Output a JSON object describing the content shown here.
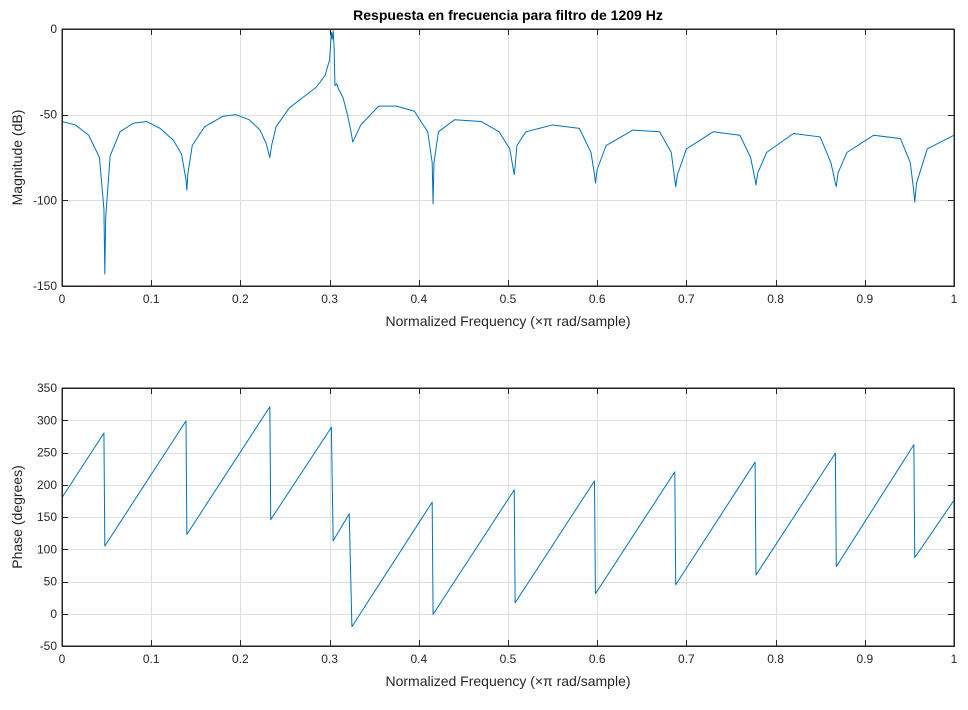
{
  "chart_data": [
    {
      "type": "line",
      "title": "Respuesta en frecuencia para filtro de 1209 Hz",
      "xlabel": "Normalized Frequency  (×π rad/sample)",
      "ylabel": "Magnitude (dB)",
      "xlim": [
        0,
        1
      ],
      "ylim": [
        -150,
        0
      ],
      "xticks": [
        0,
        0.1,
        0.2,
        0.3,
        0.4,
        0.5,
        0.6,
        0.7,
        0.8,
        0.9,
        1
      ],
      "xtick_labels": [
        "0",
        "0.1",
        "0.2",
        "0.3",
        "0.4",
        "0.5",
        "0.6",
        "0.7",
        "0.8",
        "0.9",
        "1"
      ],
      "yticks": [
        -150,
        -100,
        -50,
        0
      ],
      "ytick_labels": [
        "-150",
        "-100",
        "-50",
        "0"
      ],
      "grid": true,
      "color": "#0072bd",
      "series": [
        {
          "x": [
            0,
            0.015,
            0.03,
            0.042,
            0.047,
            0.048,
            0.049,
            0.054,
            0.065,
            0.08,
            0.095,
            0.11,
            0.125,
            0.134,
            0.139,
            0.14,
            0.141,
            0.146,
            0.16,
            0.18,
            0.195,
            0.21,
            0.222,
            0.229,
            0.233,
            0.235,
            0.24,
            0.255,
            0.27,
            0.285,
            0.295,
            0.3,
            0.302,
            0.303,
            0.304,
            0.305,
            0.306,
            0.308,
            0.31,
            0.315,
            0.32,
            0.324,
            0.326,
            0.335,
            0.355,
            0.375,
            0.395,
            0.41,
            0.415,
            0.416,
            0.417,
            0.422,
            0.44,
            0.47,
            0.49,
            0.502,
            0.507,
            0.508,
            0.51,
            0.52,
            0.55,
            0.58,
            0.593,
            0.597,
            0.598,
            0.6,
            0.61,
            0.64,
            0.67,
            0.683,
            0.687,
            0.688,
            0.69,
            0.7,
            0.73,
            0.76,
            0.772,
            0.777,
            0.778,
            0.78,
            0.79,
            0.82,
            0.85,
            0.862,
            0.867,
            0.868,
            0.87,
            0.88,
            0.91,
            0.94,
            0.951,
            0.955,
            0.956,
            0.958,
            0.97,
            1
          ],
          "y": [
            -54,
            -56,
            -62,
            -75,
            -105,
            -143,
            -110,
            -74,
            -60,
            -55,
            -54,
            -58,
            -65,
            -73,
            -88,
            -94,
            -85,
            -68,
            -57,
            -51,
            -50,
            -53,
            -59,
            -67,
            -75,
            -68,
            -57,
            -46,
            -40,
            -34,
            -27,
            -18,
            -2,
            -6,
            -1,
            -10,
            -33,
            -32,
            -35,
            -40,
            -50,
            -60,
            -66,
            -56,
            -45,
            -45,
            -48,
            -60,
            -78,
            -102,
            -78,
            -60,
            -53,
            -54,
            -60,
            -70,
            -85,
            -80,
            -68,
            -60,
            -56,
            -58,
            -72,
            -85,
            -90,
            -82,
            -68,
            -59,
            -60,
            -72,
            -88,
            -92,
            -85,
            -70,
            -60,
            -62,
            -75,
            -88,
            -91,
            -84,
            -72,
            -61,
            -63,
            -78,
            -90,
            -92,
            -84,
            -72,
            -62,
            -64,
            -78,
            -95,
            -101,
            -90,
            -70,
            -62
          ]
        }
      ]
    },
    {
      "type": "line",
      "title": "",
      "xlabel": "Normalized Frequency  (×π rad/sample)",
      "ylabel": "Phase (degrees)",
      "xlim": [
        0,
        1
      ],
      "ylim": [
        -50,
        350
      ],
      "xticks": [
        0,
        0.1,
        0.2,
        0.3,
        0.4,
        0.5,
        0.6,
        0.7,
        0.8,
        0.9,
        1
      ],
      "xtick_labels": [
        "0",
        "0.1",
        "0.2",
        "0.3",
        "0.4",
        "0.5",
        "0.6",
        "0.7",
        "0.8",
        "0.9",
        "1"
      ],
      "yticks": [
        -50,
        0,
        50,
        100,
        150,
        200,
        250,
        300,
        350
      ],
      "ytick_labels": [
        "-50",
        "0",
        "50",
        "100",
        "150",
        "200",
        "250",
        "300",
        "350"
      ],
      "grid": true,
      "color": "#0072bd",
      "series": [
        {
          "x": [
            0,
            0.047,
            0.048,
            0.139,
            0.14,
            0.233,
            0.234,
            0.302,
            0.304,
            0.322,
            0.325,
            0.415,
            0.416,
            0.507,
            0.508,
            0.597,
            0.598,
            0.687,
            0.688,
            0.777,
            0.778,
            0.867,
            0.868,
            0.955,
            0.956,
            1
          ],
          "y": [
            180,
            280,
            105,
            299,
            123,
            321,
            146,
            289,
            113,
            155,
            -20,
            173,
            -1,
            192,
            17,
            206,
            31,
            220,
            45,
            235,
            60,
            249,
            73,
            262,
            87,
            176
          ]
        }
      ]
    }
  ]
}
